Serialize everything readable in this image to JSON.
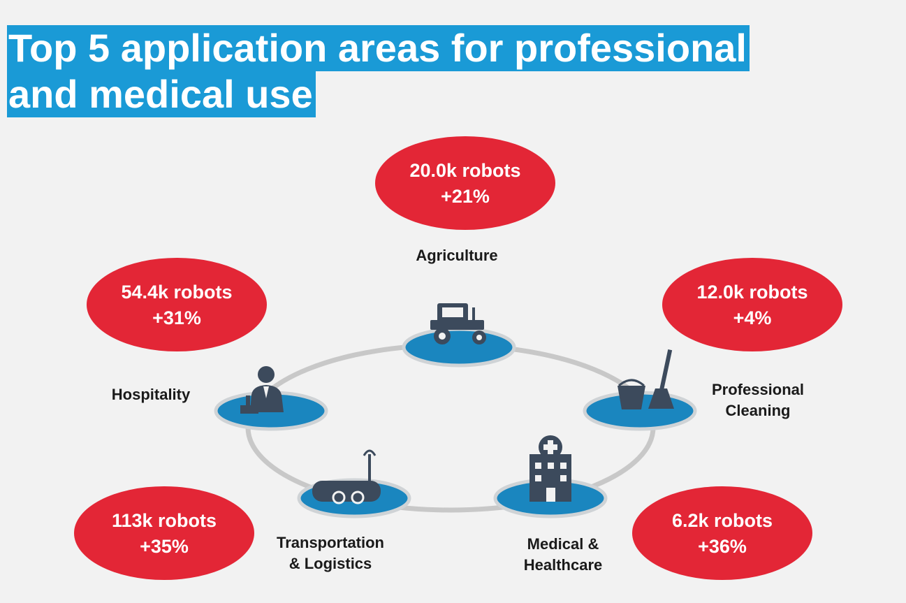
{
  "title": {
    "line1": "Top 5 application areas for professional",
    "line2": "and medical use"
  },
  "colors": {
    "title_bg": "#1a9ad6",
    "oval_red": "#e32636",
    "platform_blue": "#1a86bf",
    "ring_gray": "#d0d0d0",
    "icon_dark": "#3c4a5c"
  },
  "areas": [
    {
      "name": "Agriculture",
      "icon": "tractor-icon",
      "robots": "20.0k robots",
      "growth": "+21%"
    },
    {
      "name": "Hospitality",
      "icon": "receptionist-icon",
      "robots": "54.4k robots",
      "growth": "+31%"
    },
    {
      "name_line1": "Professional",
      "name_line2": "Cleaning",
      "icon": "bucket-mop-icon",
      "robots": "12.0k robots",
      "growth": "+4%"
    },
    {
      "name_line1": "Transportation",
      "name_line2": "& Logistics",
      "icon": "delivery-robot-icon",
      "robots": "113k robots",
      "growth": "+35%"
    },
    {
      "name_line1": "Medical &",
      "name_line2": "Healthcare",
      "icon": "hospital-icon",
      "robots": "6.2k robots",
      "growth": "+36%"
    }
  ]
}
